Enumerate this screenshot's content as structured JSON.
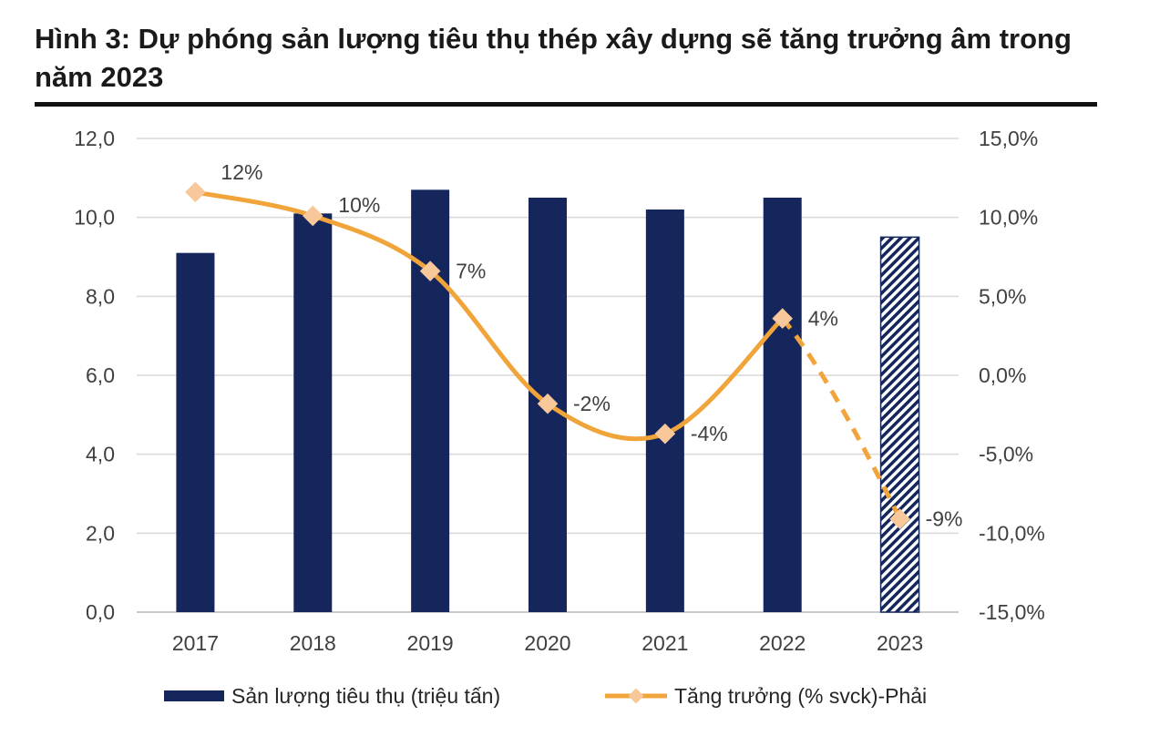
{
  "title": "Hình 3: Dự phóng sản lượng tiêu thụ thép xây dựng sẽ tăng trưởng âm trong năm 2023",
  "chart_data": {
    "type": "bar+line",
    "categories": [
      "2017",
      "2018",
      "2019",
      "2020",
      "2021",
      "2022",
      "2023"
    ],
    "series": [
      {
        "name": "Sản lượng tiêu thụ (triệu tấn)",
        "type": "bar",
        "axis": "left",
        "values": [
          9.1,
          10.1,
          10.7,
          10.5,
          10.2,
          10.5,
          9.5
        ],
        "forecast_index": 6,
        "color": "#14265c"
      },
      {
        "name": "Tăng trưởng (% svck)-Phải",
        "type": "line",
        "axis": "right",
        "values": [
          11.6,
          10.1,
          6.6,
          -1.8,
          -3.7,
          3.6,
          -9.1
        ],
        "labels": [
          "12%",
          "10%",
          "7%",
          "-2%",
          "-4%",
          "4%",
          "-9%"
        ],
        "forecast_index": 6,
        "color": "#f0a43a",
        "marker_color": "#f8c89a"
      }
    ],
    "y_left": {
      "min": 0,
      "max": 12,
      "ticks": [
        "0,0",
        "2,0",
        "4,0",
        "6,0",
        "8,0",
        "10,0",
        "12,0"
      ]
    },
    "y_right": {
      "min": -15,
      "max": 15,
      "ticks": [
        "-15,0%",
        "-10,0%",
        "-5,0%",
        "0,0%",
        "5,0%",
        "10,0%",
        "15,0%"
      ]
    },
    "grid": true,
    "legend_position": "bottom"
  }
}
